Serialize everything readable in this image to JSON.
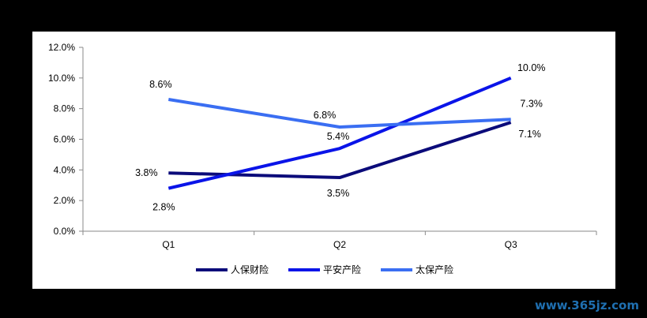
{
  "chart_data": {
    "type": "line",
    "categories": [
      "Q1",
      "Q2",
      "Q3"
    ],
    "ylim": [
      0,
      12
    ],
    "yticks": [
      "0.0%",
      "2.0%",
      "4.0%",
      "6.0%",
      "8.0%",
      "10.0%",
      "12.0%"
    ],
    "yticks_values": [
      0,
      2,
      4,
      6,
      8,
      10,
      12
    ],
    "grid": false,
    "legend_position": "bottom",
    "series": [
      {
        "name": "人保财险",
        "color": "#0b0b7a",
        "values": [
          3.8,
          3.5,
          7.1
        ],
        "labels": [
          "3.8%",
          "3.5%",
          "7.1%"
        ]
      },
      {
        "name": "平安产险",
        "color": "#0a14e8",
        "values": [
          2.8,
          5.4,
          10.0
        ],
        "labels": [
          "2.8%",
          "5.4%",
          "10.0%"
        ]
      },
      {
        "name": "太保产险",
        "color": "#3a6ef2",
        "values": [
          8.6,
          6.8,
          7.3
        ],
        "labels": [
          "8.6%",
          "6.8%",
          "7.3%"
        ]
      }
    ]
  },
  "watermark": "www.365jz.com"
}
